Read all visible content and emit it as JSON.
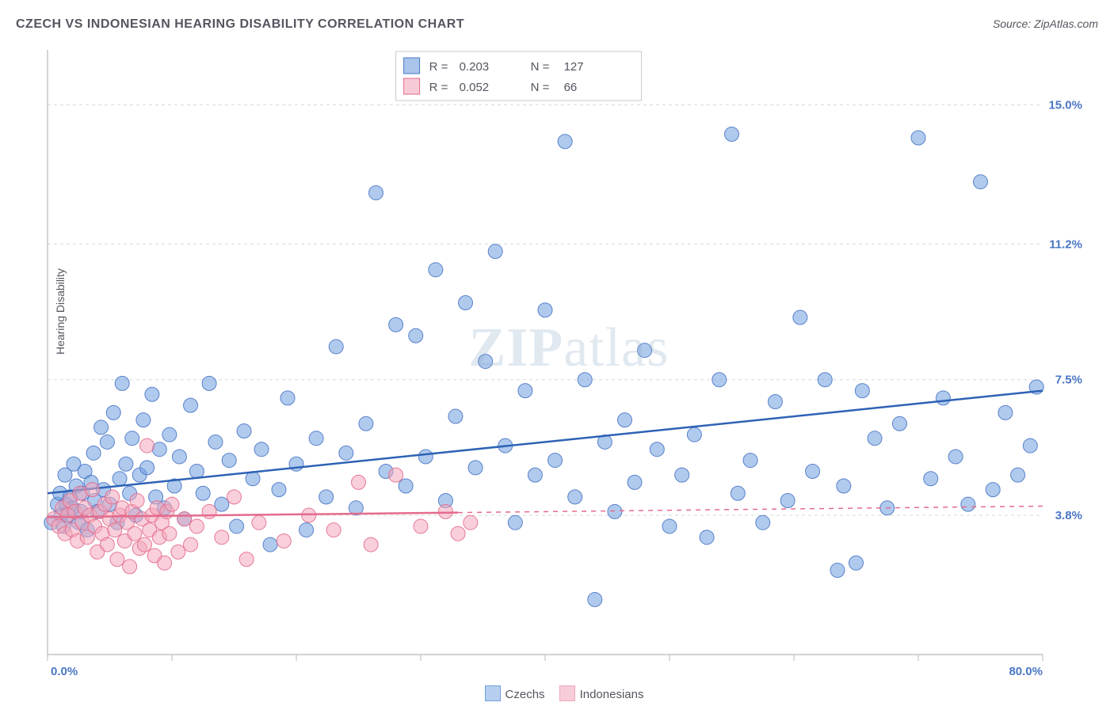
{
  "title": "CZECH VS INDONESIAN HEARING DISABILITY CORRELATION CHART",
  "source_prefix": "Source: ",
  "source_name": "ZipAtlas.com",
  "ylabel": "Hearing Disability",
  "watermark_bold": "ZIP",
  "watermark_rest": "atlas",
  "chart": {
    "type": "scatter",
    "xlim": [
      0,
      80
    ],
    "ylim": [
      0,
      16.5
    ],
    "x_tick_step": 10,
    "x_start_label": "0.0%",
    "x_end_label": "80.0%",
    "y_gridlines": [
      3.8,
      7.5,
      11.2,
      15.0
    ],
    "y_grid_labels": [
      "3.8%",
      "7.5%",
      "11.2%",
      "15.0%"
    ],
    "background_color": "#ffffff",
    "axis_color": "#b8b8b8",
    "grid_color": "#d9d9d9",
    "tick_color": "#b8b8b8",
    "label_color": "#4a77c4",
    "marker_radius": 9,
    "marker_opacity": 0.55,
    "marker_stroke_opacity": 0.9,
    "line_width": 2.5,
    "series": [
      {
        "name": "Czechs",
        "color": "#6f9fe0",
        "stroke": "#4a77c4",
        "line_color": "#2e62b5",
        "r": "0.203",
        "n": "127",
        "trend": {
          "x1": 0,
          "y1": 4.4,
          "x2": 80,
          "y2": 7.2,
          "dashed_from": null
        },
        "points": [
          [
            0.3,
            3.6
          ],
          [
            0.8,
            4.1
          ],
          [
            1.0,
            4.4
          ],
          [
            1.1,
            3.8
          ],
          [
            1.3,
            3.5
          ],
          [
            1.4,
            4.9
          ],
          [
            1.5,
            4.1
          ],
          [
            1.7,
            3.8
          ],
          [
            1.8,
            4.3
          ],
          [
            2.0,
            4.0
          ],
          [
            2.1,
            5.2
          ],
          [
            2.3,
            4.6
          ],
          [
            2.5,
            3.6
          ],
          [
            2.7,
            3.9
          ],
          [
            2.8,
            4.4
          ],
          [
            3.0,
            5.0
          ],
          [
            3.2,
            3.4
          ],
          [
            3.5,
            4.7
          ],
          [
            3.7,
            5.5
          ],
          [
            3.8,
            4.2
          ],
          [
            4.0,
            3.9
          ],
          [
            4.3,
            6.2
          ],
          [
            4.5,
            4.5
          ],
          [
            4.8,
            5.8
          ],
          [
            5.0,
            4.1
          ],
          [
            5.3,
            6.6
          ],
          [
            5.6,
            3.6
          ],
          [
            5.8,
            4.8
          ],
          [
            6.0,
            7.4
          ],
          [
            6.3,
            5.2
          ],
          [
            6.6,
            4.4
          ],
          [
            6.8,
            5.9
          ],
          [
            7.1,
            3.8
          ],
          [
            7.4,
            4.9
          ],
          [
            7.7,
            6.4
          ],
          [
            8.0,
            5.1
          ],
          [
            8.4,
            7.1
          ],
          [
            8.7,
            4.3
          ],
          [
            9.0,
            5.6
          ],
          [
            9.4,
            4.0
          ],
          [
            9.8,
            6.0
          ],
          [
            10.2,
            4.6
          ],
          [
            10.6,
            5.4
          ],
          [
            11.0,
            3.7
          ],
          [
            11.5,
            6.8
          ],
          [
            12.0,
            5.0
          ],
          [
            12.5,
            4.4
          ],
          [
            13.0,
            7.4
          ],
          [
            13.5,
            5.8
          ],
          [
            14.0,
            4.1
          ],
          [
            14.6,
            5.3
          ],
          [
            15.2,
            3.5
          ],
          [
            15.8,
            6.1
          ],
          [
            16.5,
            4.8
          ],
          [
            17.2,
            5.6
          ],
          [
            17.9,
            3.0
          ],
          [
            18.6,
            4.5
          ],
          [
            19.3,
            7.0
          ],
          [
            20.0,
            5.2
          ],
          [
            20.8,
            3.4
          ],
          [
            21.6,
            5.9
          ],
          [
            22.4,
            4.3
          ],
          [
            23.2,
            8.4
          ],
          [
            24.0,
            5.5
          ],
          [
            24.8,
            4.0
          ],
          [
            25.6,
            6.3
          ],
          [
            26.4,
            12.6
          ],
          [
            27.2,
            5.0
          ],
          [
            28.0,
            9.0
          ],
          [
            28.8,
            4.6
          ],
          [
            29.6,
            8.7
          ],
          [
            30.4,
            5.4
          ],
          [
            31.2,
            10.5
          ],
          [
            32.0,
            4.2
          ],
          [
            32.8,
            6.5
          ],
          [
            33.6,
            9.6
          ],
          [
            34.4,
            5.1
          ],
          [
            35.2,
            8.0
          ],
          [
            36.0,
            11.0
          ],
          [
            36.8,
            5.7
          ],
          [
            37.6,
            3.6
          ],
          [
            38.4,
            7.2
          ],
          [
            39.2,
            4.9
          ],
          [
            40.0,
            9.4
          ],
          [
            40.8,
            5.3
          ],
          [
            41.6,
            14.0
          ],
          [
            42.4,
            4.3
          ],
          [
            43.2,
            7.5
          ],
          [
            44.0,
            1.5
          ],
          [
            44.8,
            5.8
          ],
          [
            45.6,
            3.9
          ],
          [
            46.4,
            6.4
          ],
          [
            47.2,
            4.7
          ],
          [
            48.0,
            8.3
          ],
          [
            49.0,
            5.6
          ],
          [
            50.0,
            3.5
          ],
          [
            51.0,
            4.9
          ],
          [
            52.0,
            6.0
          ],
          [
            53.0,
            3.2
          ],
          [
            54.0,
            7.5
          ],
          [
            55.0,
            14.2
          ],
          [
            55.5,
            4.4
          ],
          [
            56.5,
            5.3
          ],
          [
            57.5,
            3.6
          ],
          [
            58.5,
            6.9
          ],
          [
            59.5,
            4.2
          ],
          [
            60.5,
            9.2
          ],
          [
            61.5,
            5.0
          ],
          [
            62.5,
            7.5
          ],
          [
            63.5,
            2.3
          ],
          [
            64.0,
            4.6
          ],
          [
            65.0,
            2.5
          ],
          [
            65.5,
            7.2
          ],
          [
            66.5,
            5.9
          ],
          [
            67.5,
            4.0
          ],
          [
            68.5,
            6.3
          ],
          [
            70.0,
            14.1
          ],
          [
            71.0,
            4.8
          ],
          [
            72.0,
            7.0
          ],
          [
            73.0,
            5.4
          ],
          [
            74.0,
            4.1
          ],
          [
            75.0,
            12.9
          ],
          [
            76.0,
            4.5
          ],
          [
            77.0,
            6.6
          ],
          [
            78.0,
            4.9
          ],
          [
            79.0,
            5.7
          ],
          [
            79.5,
            7.3
          ]
        ]
      },
      {
        "name": "Indonesians",
        "color": "#f2a8bb",
        "stroke": "#e46b8c",
        "line_color": "#e46b8c",
        "r": "0.052",
        "n": "66",
        "trend": {
          "x1": 0,
          "y1": 3.75,
          "x2": 80,
          "y2": 4.05,
          "dashed_from": 33
        },
        "points": [
          [
            0.5,
            3.7
          ],
          [
            0.9,
            3.5
          ],
          [
            1.2,
            4.0
          ],
          [
            1.4,
            3.3
          ],
          [
            1.6,
            3.8
          ],
          [
            1.8,
            4.2
          ],
          [
            2.0,
            3.4
          ],
          [
            2.2,
            3.9
          ],
          [
            2.4,
            3.1
          ],
          [
            2.6,
            4.4
          ],
          [
            2.8,
            3.6
          ],
          [
            3.0,
            4.0
          ],
          [
            3.2,
            3.2
          ],
          [
            3.4,
            3.8
          ],
          [
            3.6,
            4.5
          ],
          [
            3.8,
            3.5
          ],
          [
            4.0,
            2.8
          ],
          [
            4.2,
            3.9
          ],
          [
            4.4,
            3.3
          ],
          [
            4.6,
            4.1
          ],
          [
            4.8,
            3.0
          ],
          [
            5.0,
            3.7
          ],
          [
            5.2,
            4.3
          ],
          [
            5.4,
            3.4
          ],
          [
            5.6,
            2.6
          ],
          [
            5.8,
            3.8
          ],
          [
            6.0,
            4.0
          ],
          [
            6.2,
            3.1
          ],
          [
            6.4,
            3.6
          ],
          [
            6.6,
            2.4
          ],
          [
            6.8,
            3.9
          ],
          [
            7.0,
            3.3
          ],
          [
            7.2,
            4.2
          ],
          [
            7.4,
            2.9
          ],
          [
            7.6,
            3.7
          ],
          [
            7.8,
            3.0
          ],
          [
            8.0,
            5.7
          ],
          [
            8.2,
            3.4
          ],
          [
            8.4,
            3.8
          ],
          [
            8.6,
            2.7
          ],
          [
            8.8,
            4.0
          ],
          [
            9.0,
            3.2
          ],
          [
            9.2,
            3.6
          ],
          [
            9.4,
            2.5
          ],
          [
            9.6,
            3.9
          ],
          [
            9.8,
            3.3
          ],
          [
            10.0,
            4.1
          ],
          [
            10.5,
            2.8
          ],
          [
            11.0,
            3.7
          ],
          [
            11.5,
            3.0
          ],
          [
            12.0,
            3.5
          ],
          [
            13.0,
            3.9
          ],
          [
            14.0,
            3.2
          ],
          [
            15.0,
            4.3
          ],
          [
            16.0,
            2.6
          ],
          [
            17.0,
            3.6
          ],
          [
            19.0,
            3.1
          ],
          [
            21.0,
            3.8
          ],
          [
            23.0,
            3.4
          ],
          [
            25.0,
            4.7
          ],
          [
            26.0,
            3.0
          ],
          [
            28.0,
            4.9
          ],
          [
            30.0,
            3.5
          ],
          [
            32.0,
            3.9
          ],
          [
            33.0,
            3.3
          ],
          [
            34.0,
            3.6
          ]
        ]
      }
    ]
  },
  "bottom_legend": [
    {
      "label": "Czechs",
      "fill": "#b7cfee",
      "stroke": "#6f9fe0"
    },
    {
      "label": "Indonesians",
      "fill": "#f7cdd8",
      "stroke": "#f2a8bb"
    }
  ]
}
